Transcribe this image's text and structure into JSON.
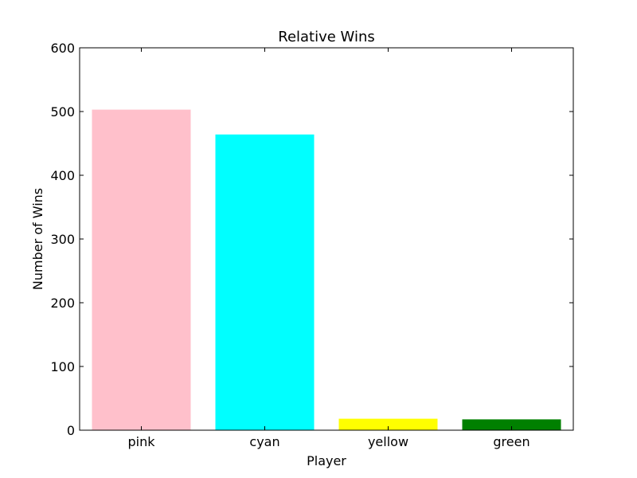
{
  "chart_data": {
    "type": "bar",
    "title": "Relative Wins",
    "xlabel": "Player",
    "ylabel": "Number of Wins",
    "categories": [
      "pink",
      "cyan",
      "yellow",
      "green"
    ],
    "values": [
      503,
      464,
      18,
      17
    ],
    "colors": [
      "#ffc0cb",
      "#00ffff",
      "#ffff00",
      "#008000"
    ],
    "ylim": [
      0,
      600
    ],
    "yticks": [
      0,
      100,
      200,
      300,
      400,
      500,
      600
    ],
    "grid": false,
    "legend": "none"
  }
}
